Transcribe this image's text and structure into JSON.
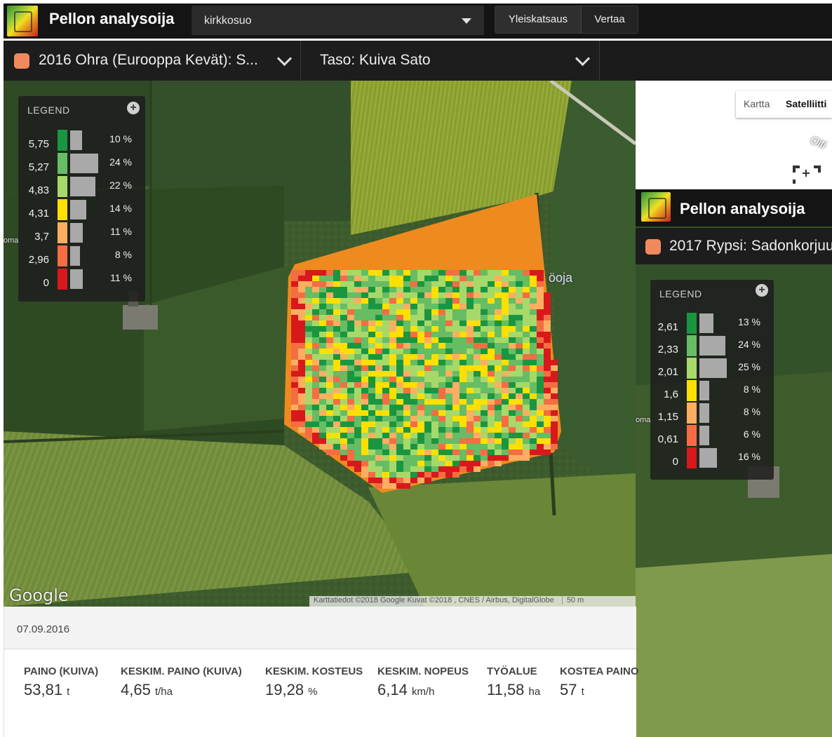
{
  "app": {
    "title": "Pellon analysoija",
    "field_select": "kirkkosuo",
    "view_buttons": [
      "Yleiskatsaus",
      "Vertaa"
    ]
  },
  "crop_selector": {
    "label": "2016 Ohra (Eurooppa Kevät): S...",
    "color": "#f08a5d"
  },
  "layer_selector": {
    "label": "Taso: Kuiva Sato"
  },
  "map": {
    "map_type": {
      "map": "Kartta",
      "satellite": "Satelliitti"
    },
    "attribution": "Karttatiedot ©2018 Google Kuvat ©2018 , CNES / Airbus, DigitalGlobe",
    "scale": "50 m",
    "google_logo": "Google",
    "road_label": "Oiti",
    "ditch_label": "öoja",
    "place_fragment": "oma"
  },
  "legend1": {
    "title": "LEGEND",
    "values": [
      "5,75",
      "5,27",
      "4,83",
      "4,31",
      "3,7",
      "2,96",
      "0"
    ],
    "percents": [
      "10 %",
      "24 %",
      "22 %",
      "14 %",
      "11 %",
      "8 %",
      "11 %"
    ],
    "percent_values": [
      10,
      24,
      22,
      14,
      11,
      8,
      11
    ],
    "colors": [
      "#1a9641",
      "#66bd63",
      "#a6d96a",
      "#fee000",
      "#fdae61",
      "#f46d43",
      "#d7191c"
    ]
  },
  "panel2": {
    "title": "Pellon analysoija",
    "crop_label": "2017 Rypsi: Sadonkorjuu",
    "crop_color": "#f08a5d",
    "legend": {
      "title": "LEGEND",
      "values": [
        "2,61",
        "2,33",
        "2,01",
        "1,6",
        "1,15",
        "0,61",
        "0"
      ],
      "percents": [
        "13 %",
        "24 %",
        "25 %",
        "8 %",
        "8 %",
        "6 %",
        "16 %"
      ],
      "percent_values": [
        13,
        24,
        25,
        8,
        8,
        6,
        16
      ]
    }
  },
  "stats": {
    "date": "07.09.2016",
    "items": [
      {
        "label": "PAINO (KUIVA)",
        "value": "53,81",
        "unit": "t"
      },
      {
        "label": "KESKIM. PAINO (KUIVA)",
        "value": "4,65",
        "unit": "t/ha"
      },
      {
        "label": "KESKIM. KOSTEUS",
        "value": "19,28",
        "unit": "%"
      },
      {
        "label": "KESKIM. NOPEUS",
        "value": "6,14",
        "unit": "km/h"
      },
      {
        "label": "TYÖALUE",
        "value": "11,58",
        "unit": "ha"
      },
      {
        "label": "KOSTEA PAINO",
        "value": "57",
        "unit": "t"
      }
    ]
  }
}
